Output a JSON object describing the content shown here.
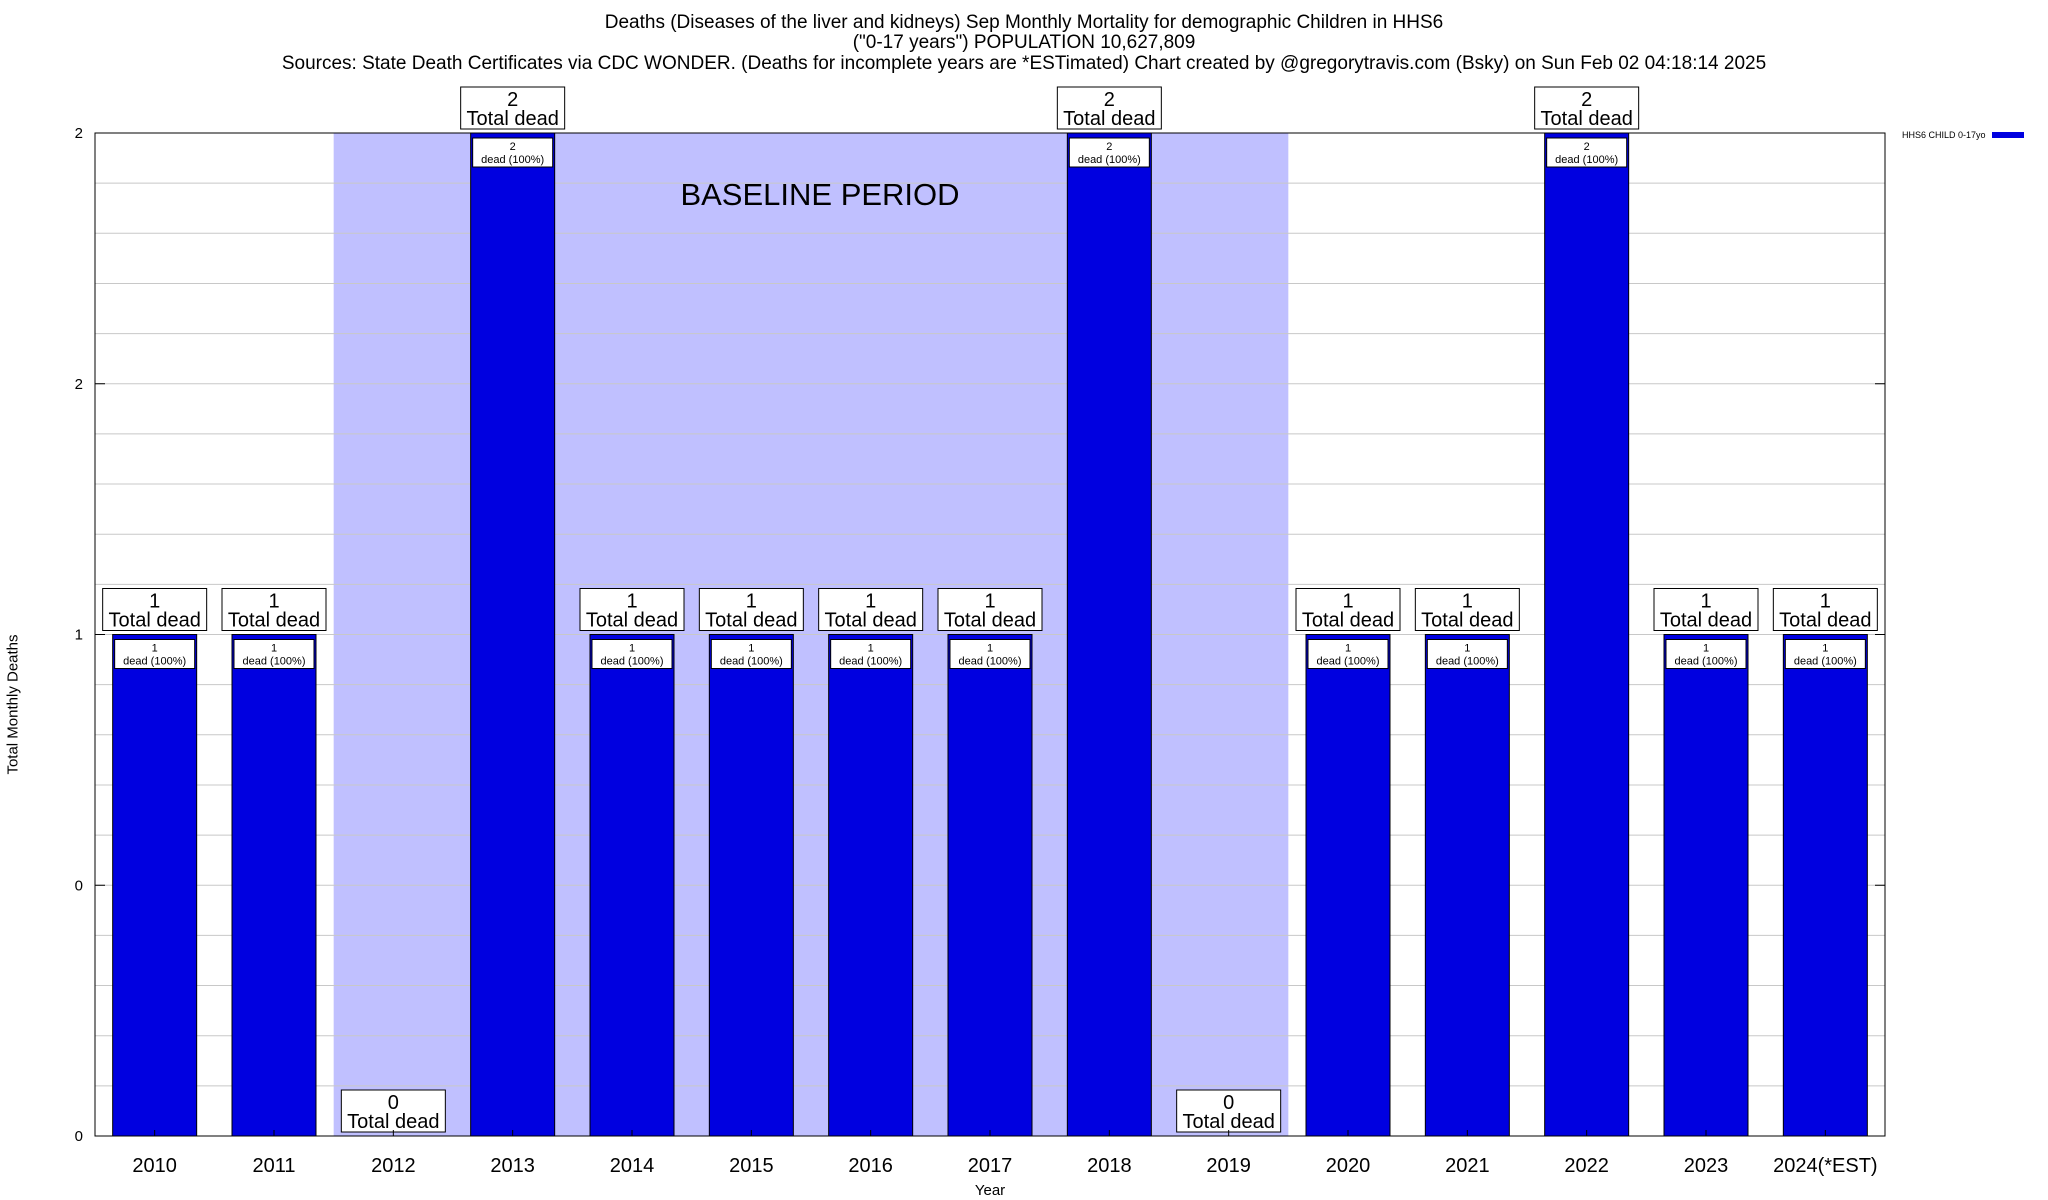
{
  "title": {
    "line1": "Deaths (Diseases of the liver and kidneys) Sep Monthly Mortality for demographic Children in HHS6",
    "line2": "(\"0-17 years\") POPULATION 10,627,809",
    "line3": "Sources: State Death Certificates via CDC WONDER. (Deaths for incomplete years are *ESTimated)               Chart created by @gregorytravis.com (Bsky) on Sun Feb 02 04:18:14 2025"
  },
  "chart_data": {
    "type": "bar",
    "categories": [
      "2010",
      "2011",
      "2012",
      "2013",
      "2014",
      "2015",
      "2016",
      "2017",
      "2018",
      "2019",
      "2020",
      "2021",
      "2022",
      "2023",
      "2024(*EST)"
    ],
    "series": [
      {
        "name": "HHS6 CHILD 0-17yo",
        "values": [
          1,
          1,
          0,
          2,
          1,
          1,
          1,
          1,
          2,
          0,
          1,
          1,
          2,
          1,
          1
        ],
        "color": "#0000e0"
      }
    ],
    "bar_labels": [
      "1\ndead (100%)",
      "1\ndead (100%)",
      "",
      "2\ndead (100%)",
      "1\ndead (100%)",
      "1\ndead (100%)",
      "1\ndead (100%)",
      "1\ndead (100%)",
      "2\ndead (100%)",
      "",
      "1\ndead (100%)",
      "1\ndead (100%)",
      "2\ndead (100%)",
      "1\ndead (100%)",
      "1\ndead (100%)"
    ],
    "total_labels": [
      "1\nTotal dead",
      "1\nTotal dead",
      "0\nTotal dead",
      "2\nTotal dead",
      "1\nTotal dead",
      "1\nTotal dead",
      "1\nTotal dead",
      "1\nTotal dead",
      "2\nTotal dead",
      "0\nTotal dead",
      "1\nTotal dead",
      "1\nTotal dead",
      "2\nTotal dead",
      "1\nTotal dead",
      "1\nTotal dead"
    ],
    "baseline": {
      "label": "BASELINE PERIOD",
      "from": "2012",
      "to": "2019",
      "color": "#c0c0ff"
    },
    "yticks": [
      {
        "value": 0,
        "label": "0"
      },
      {
        "value": 0.5,
        "label": "0"
      },
      {
        "value": 1,
        "label": "1"
      },
      {
        "value": 1.5,
        "label": "2"
      },
      {
        "value": 2,
        "label": "2"
      }
    ],
    "ylim": [
      0,
      2
    ],
    "xlabel": "Year",
    "ylabel": "Total Monthly Deaths",
    "grid": true,
    "legend_position": "top-right"
  }
}
